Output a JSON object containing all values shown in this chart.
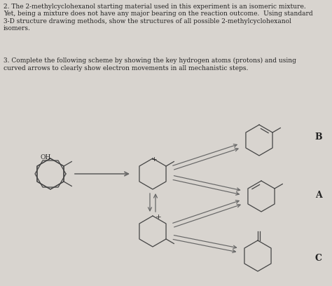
{
  "background_color": "#d8d4cf",
  "text_color": "#222222",
  "line_color": "#444444",
  "arrow_color": "#666666",
  "title_text": "2. The 2-methylcyclohexanol starting material used in this experiment is an isomeric mixture.\nYet, being a mixture does not have any major bearing on the reaction outcome.  Using standard\n3-D structure drawing methods, show the structures of all possible 2-methylcyclohexanol\nisomers.",
  "subtitle_text": "3. Complete the following scheme by showing the key hydrogen atoms (protons) and using\ncurved arrows to clearly show electron movements in all mechanistic steps.",
  "label_B": "B",
  "label_A": "A",
  "label_C": "C",
  "label_OH": "OH",
  "label_plus1": "+",
  "label_plus2": "+",
  "font_size_body": 6.5,
  "font_size_label": 8.5,
  "fig_width": 4.74,
  "fig_height": 4.08,
  "dpi": 100
}
